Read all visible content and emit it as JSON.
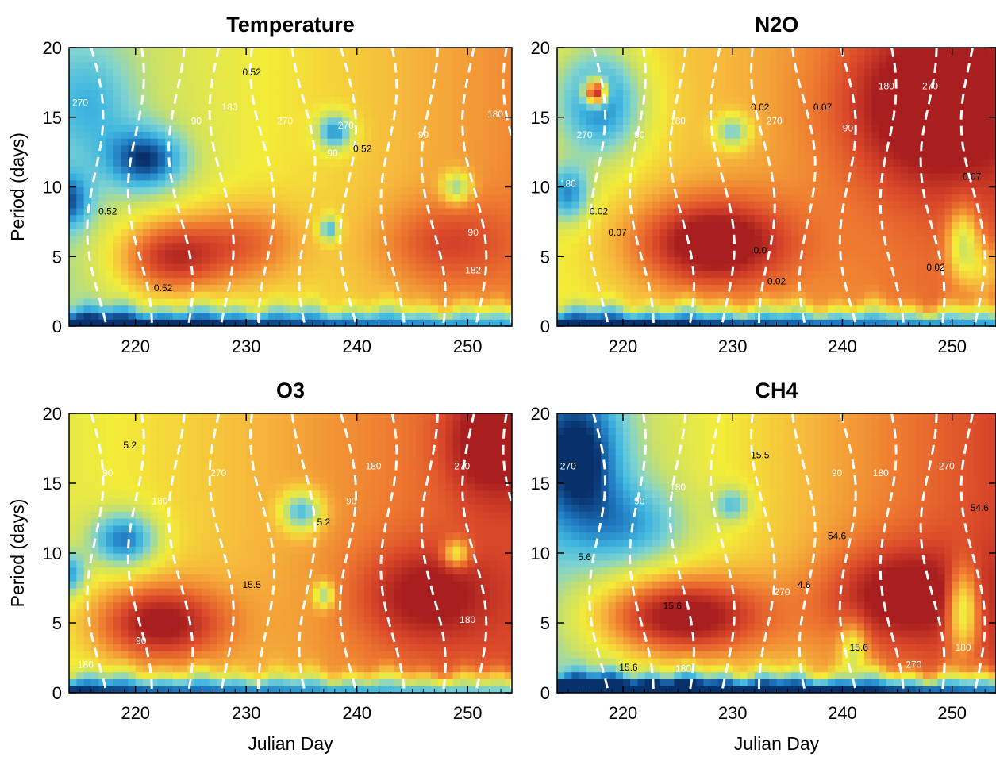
{
  "figure": {
    "xlabel": "Julian Day",
    "ylabel": "Period (days)",
    "colormap": [
      "#08306b",
      "#1f78c1",
      "#3fb6e0",
      "#7fd3d0",
      "#c8e06a",
      "#f3ec38",
      "#f6b73c",
      "#ee7a30",
      "#d9472a",
      "#a91f1f"
    ]
  },
  "chart_data": [
    {
      "type": "heatmap",
      "title": "Temperature",
      "xlabel": "",
      "ylabel": "Period (days)",
      "xlim": [
        214,
        254
      ],
      "ylim": [
        0,
        20
      ],
      "xticks": [
        220,
        230,
        240,
        250
      ],
      "yticks": [
        0,
        5,
        10,
        15,
        20
      ],
      "contour_labels": [
        {
          "text": "0.52",
          "x": 230.5,
          "y": 18.0
        },
        {
          "text": "0.52",
          "x": 217.5,
          "y": 8.0
        },
        {
          "text": "0.52",
          "x": 240.5,
          "y": 12.5
        },
        {
          "text": "270",
          "x": 215.0,
          "y": 15.8
        },
        {
          "text": "90",
          "x": 225.5,
          "y": 14.5
        },
        {
          "text": "180",
          "x": 228.5,
          "y": 15.5
        },
        {
          "text": "270",
          "x": 233.5,
          "y": 14.5
        },
        {
          "text": "270",
          "x": 239.0,
          "y": 14.2
        },
        {
          "text": "90",
          "x": 237.8,
          "y": 12.2
        },
        {
          "text": "90",
          "x": 246.0,
          "y": 13.5
        },
        {
          "text": "180",
          "x": 252.5,
          "y": 15.0
        },
        {
          "text": "90",
          "x": 250.5,
          "y": 6.5
        },
        {
          "text": "182",
          "x": 250.5,
          "y": 3.8
        },
        {
          "text": "0.52",
          "x": 222.5,
          "y": 2.5
        }
      ]
    },
    {
      "type": "heatmap",
      "title": "N2O",
      "xlabel": "",
      "ylabel": "",
      "xlim": [
        214,
        254
      ],
      "ylim": [
        0,
        20
      ],
      "xticks": [
        220,
        230,
        240,
        250
      ],
      "yticks": [
        0,
        5,
        10,
        15,
        20
      ],
      "contour_labels": [
        {
          "text": "270",
          "x": 216.5,
          "y": 13.5
        },
        {
          "text": "90",
          "x": 221.5,
          "y": 13.5
        },
        {
          "text": "180",
          "x": 225.0,
          "y": 14.5
        },
        {
          "text": "0.02",
          "x": 232.5,
          "y": 15.5
        },
        {
          "text": "270",
          "x": 233.8,
          "y": 14.5
        },
        {
          "text": "0.07",
          "x": 238.2,
          "y": 15.5
        },
        {
          "text": "90",
          "x": 240.5,
          "y": 14.0
        },
        {
          "text": "180",
          "x": 244.0,
          "y": 17.0
        },
        {
          "text": "270",
          "x": 248.0,
          "y": 17.0
        },
        {
          "text": "0.07",
          "x": 251.8,
          "y": 10.5
        },
        {
          "text": "180",
          "x": 215.0,
          "y": 10.0
        },
        {
          "text": "0.02",
          "x": 217.8,
          "y": 8.0
        },
        {
          "text": "0.07",
          "x": 219.5,
          "y": 6.5
        },
        {
          "text": "0.0",
          "x": 232.5,
          "y": 5.2
        },
        {
          "text": "0.02",
          "x": 234.0,
          "y": 3.0
        },
        {
          "text": "0.02",
          "x": 248.5,
          "y": 4.0
        }
      ]
    },
    {
      "type": "heatmap",
      "title": "O3",
      "xlabel": "Julian Day",
      "ylabel": "Period (days)",
      "xlim": [
        214,
        254
      ],
      "ylim": [
        0,
        20
      ],
      "xticks": [
        220,
        230,
        240,
        250
      ],
      "yticks": [
        0,
        5,
        10,
        15,
        20
      ],
      "contour_labels": [
        {
          "text": "5.2",
          "x": 219.5,
          "y": 17.5
        },
        {
          "text": "90",
          "x": 217.5,
          "y": 15.5
        },
        {
          "text": "180",
          "x": 222.2,
          "y": 13.5
        },
        {
          "text": "270",
          "x": 227.5,
          "y": 15.5
        },
        {
          "text": "180",
          "x": 241.5,
          "y": 16.0
        },
        {
          "text": "270",
          "x": 249.5,
          "y": 16.0
        },
        {
          "text": "90",
          "x": 239.5,
          "y": 13.5
        },
        {
          "text": "5.2",
          "x": 237.0,
          "y": 12.0
        },
        {
          "text": "15.5",
          "x": 230.5,
          "y": 7.5
        },
        {
          "text": "180",
          "x": 250.0,
          "y": 5.0
        },
        {
          "text": "90",
          "x": 220.5,
          "y": 3.5
        },
        {
          "text": "180",
          "x": 215.5,
          "y": 1.8
        }
      ]
    },
    {
      "type": "heatmap",
      "title": "CH4",
      "xlabel": "Julian Day",
      "ylabel": "",
      "xlim": [
        214,
        254
      ],
      "ylim": [
        0,
        20
      ],
      "xticks": [
        220,
        230,
        240,
        250
      ],
      "yticks": [
        0,
        5,
        10,
        15,
        20
      ],
      "contour_labels": [
        {
          "text": "270",
          "x": 215.0,
          "y": 16.0
        },
        {
          "text": "90",
          "x": 221.5,
          "y": 13.5
        },
        {
          "text": "180",
          "x": 225.0,
          "y": 14.5
        },
        {
          "text": "15.5",
          "x": 232.5,
          "y": 16.8
        },
        {
          "text": "90",
          "x": 239.5,
          "y": 15.5
        },
        {
          "text": "180",
          "x": 243.5,
          "y": 15.5
        },
        {
          "text": "270",
          "x": 249.5,
          "y": 16.0
        },
        {
          "text": "54.6",
          "x": 252.5,
          "y": 13.0
        },
        {
          "text": "54.6",
          "x": 239.5,
          "y": 11.0
        },
        {
          "text": "5.6",
          "x": 216.5,
          "y": 9.5
        },
        {
          "text": "4.6",
          "x": 236.5,
          "y": 7.5
        },
        {
          "text": "270",
          "x": 234.5,
          "y": 7.0
        },
        {
          "text": "15.6",
          "x": 224.5,
          "y": 6.0
        },
        {
          "text": "15.6",
          "x": 241.5,
          "y": 3.0
        },
        {
          "text": "15.6",
          "x": 220.5,
          "y": 1.6
        },
        {
          "text": "180",
          "x": 225.5,
          "y": 1.5
        },
        {
          "text": "270",
          "x": 246.5,
          "y": 1.8
        },
        {
          "text": "180",
          "x": 251.0,
          "y": 3.0
        }
      ]
    }
  ]
}
